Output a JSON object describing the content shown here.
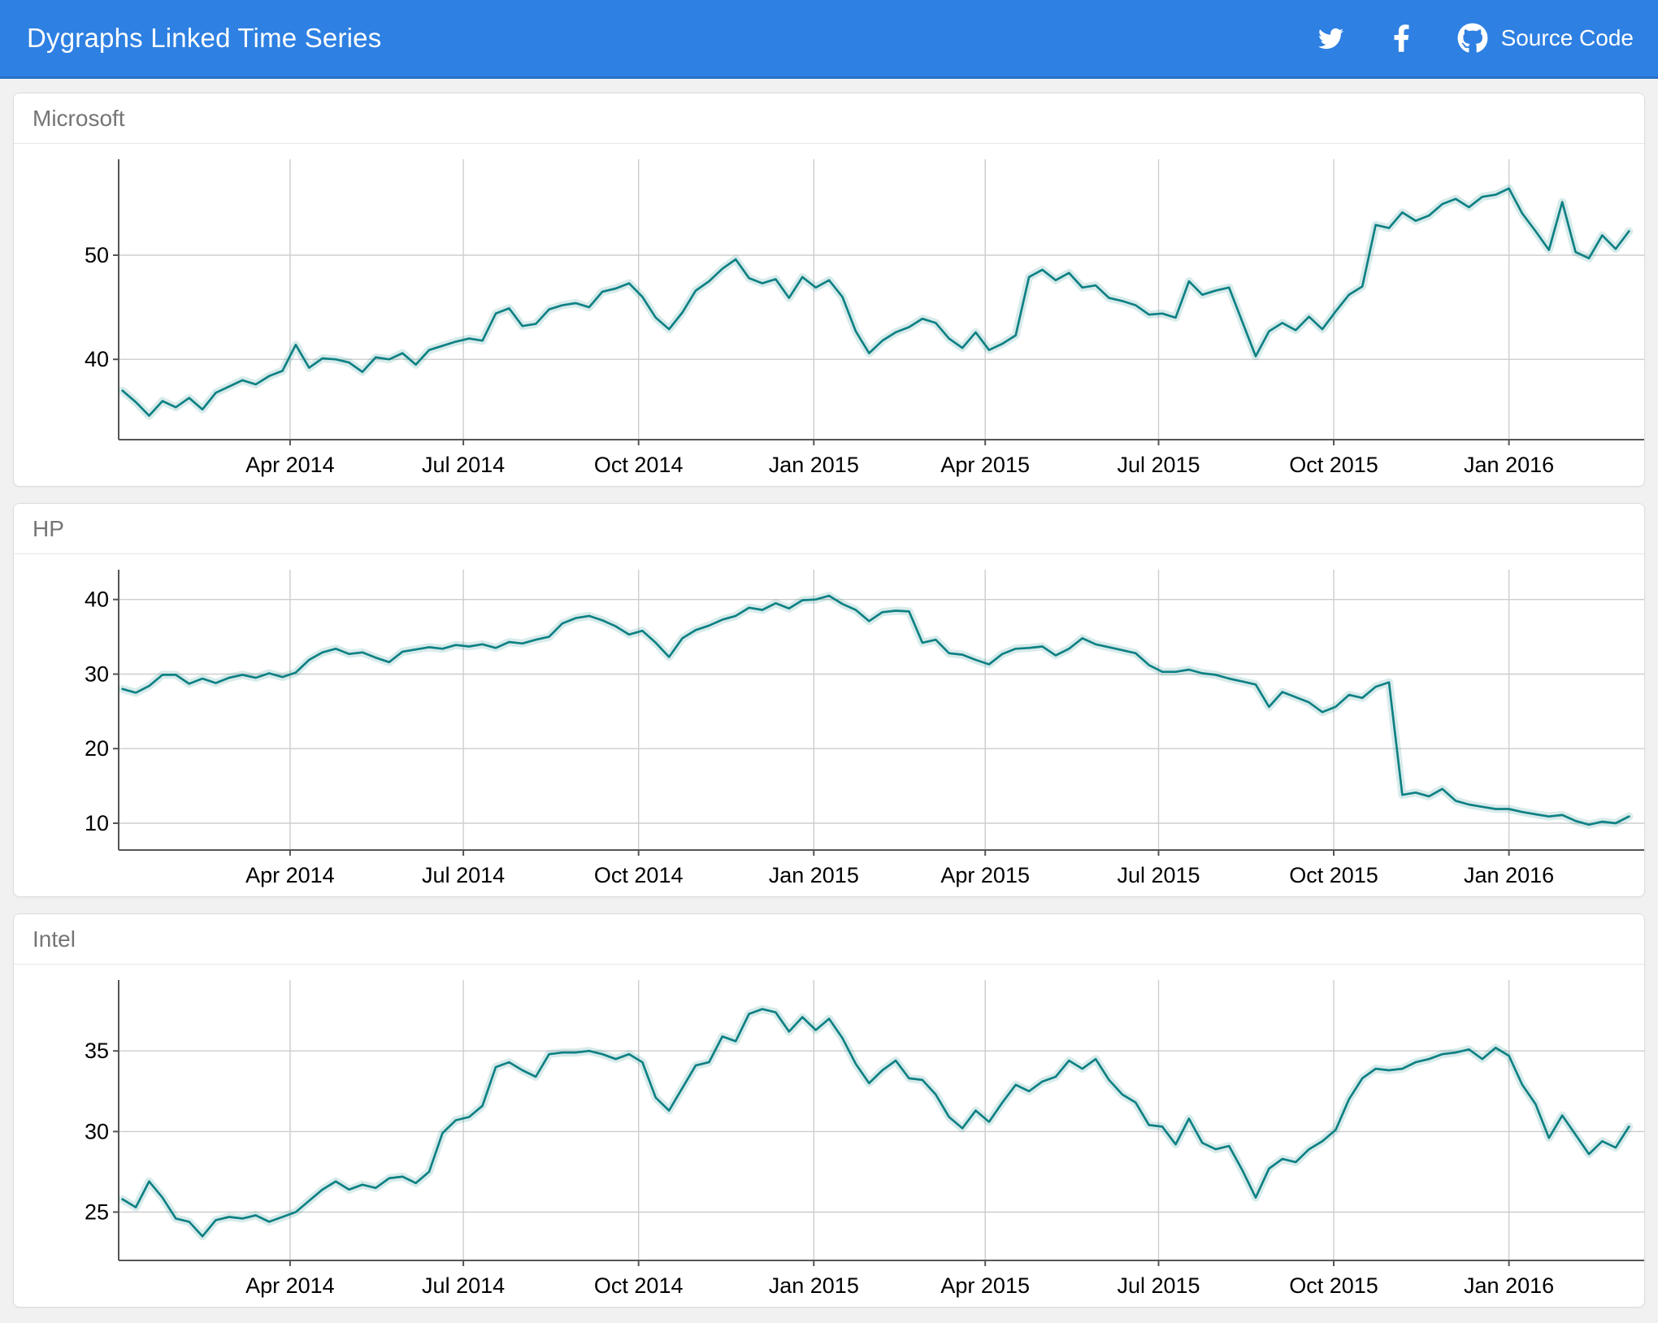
{
  "navbar": {
    "title": "Dygraphs Linked Time Series",
    "links": [
      {
        "name": "twitter",
        "label": ""
      },
      {
        "name": "facebook",
        "label": ""
      },
      {
        "name": "github",
        "label": "Source Code"
      }
    ],
    "source_code_label": "Source Code"
  },
  "colors": {
    "navbar_bg": "#2e80e2",
    "series_line": "#0e8184",
    "series_band": "rgba(14,129,132,0.16)",
    "gridline": "#cdcdcd",
    "axis_line": "#555555",
    "tick_label": "#000000",
    "panel_title": "#757575",
    "page_bg": "#f1f1f2"
  },
  "chart_data": [
    {
      "type": "line",
      "title": "Microsoft",
      "legend_position": "none",
      "grid": true,
      "x_domain_days": [
        0,
        801
      ],
      "x_epoch": "2014-01-01",
      "data_start_day": 2,
      "data_step_days": 7,
      "y_min": 32.3,
      "y_max": 59.2,
      "y_ticks": [
        40,
        50
      ],
      "x_ticks": [
        {
          "label": "Apr 2014",
          "day": 90
        },
        {
          "label": "Jul 2014",
          "day": 181
        },
        {
          "label": "Oct 2014",
          "day": 273
        },
        {
          "label": "Jan 2015",
          "day": 365
        },
        {
          "label": "Apr 2015",
          "day": 455
        },
        {
          "label": "Jul 2015",
          "day": 546
        },
        {
          "label": "Oct 2015",
          "day": 638
        },
        {
          "label": "Jan 2016",
          "day": 730
        }
      ],
      "values": [
        37.0,
        35.9,
        34.6,
        36.0,
        35.4,
        36.3,
        35.2,
        36.8,
        37.4,
        38.0,
        37.6,
        38.4,
        38.9,
        41.4,
        39.2,
        40.1,
        40.0,
        39.7,
        38.8,
        40.2,
        40.0,
        40.6,
        39.5,
        40.9,
        41.3,
        41.7,
        42.0,
        41.8,
        44.4,
        44.9,
        43.2,
        43.4,
        44.8,
        45.2,
        45.4,
        45.0,
        46.5,
        46.8,
        47.3,
        46.0,
        44.0,
        42.9,
        44.5,
        46.6,
        47.5,
        48.7,
        49.6,
        47.8,
        47.3,
        47.7,
        45.9,
        47.9,
        46.9,
        47.6,
        46.0,
        42.7,
        40.6,
        41.8,
        42.6,
        43.1,
        43.9,
        43.5,
        42.0,
        41.1,
        42.6,
        40.9,
        41.5,
        42.3,
        47.9,
        48.6,
        47.6,
        48.3,
        46.9,
        47.1,
        45.9,
        45.6,
        45.2,
        44.3,
        44.4,
        44.0,
        47.5,
        46.2,
        46.6,
        46.9,
        43.6,
        40.3,
        42.7,
        43.5,
        42.8,
        44.1,
        42.9,
        44.6,
        46.2,
        47.0,
        52.9,
        52.6,
        54.1,
        53.3,
        53.8,
        54.9,
        55.4,
        54.6,
        55.6,
        55.8,
        56.4,
        54.0,
        52.3,
        50.5,
        55.1,
        50.3,
        49.7,
        51.9,
        50.6,
        52.3
      ]
    },
    {
      "type": "line",
      "title": "HP",
      "legend_position": "none",
      "grid": true,
      "x_domain_days": [
        0,
        801
      ],
      "x_epoch": "2014-01-01",
      "data_start_day": 2,
      "data_step_days": 7,
      "y_min": 6.4,
      "y_max": 44.0,
      "y_ticks": [
        10,
        20,
        30,
        40
      ],
      "x_ticks": [
        {
          "label": "Apr 2014",
          "day": 90
        },
        {
          "label": "Jul 2014",
          "day": 181
        },
        {
          "label": "Oct 2014",
          "day": 273
        },
        {
          "label": "Jan 2015",
          "day": 365
        },
        {
          "label": "Apr 2015",
          "day": 455
        },
        {
          "label": "Jul 2015",
          "day": 546
        },
        {
          "label": "Oct 2015",
          "day": 638
        },
        {
          "label": "Jan 2016",
          "day": 730
        }
      ],
      "values": [
        28.0,
        27.5,
        28.4,
        29.9,
        29.9,
        28.7,
        29.4,
        28.8,
        29.5,
        29.9,
        29.5,
        30.1,
        29.6,
        30.2,
        31.9,
        32.9,
        33.4,
        32.7,
        32.9,
        32.2,
        31.6,
        33.0,
        33.3,
        33.6,
        33.4,
        33.9,
        33.7,
        34.0,
        33.5,
        34.3,
        34.1,
        34.6,
        35.0,
        36.8,
        37.5,
        37.8,
        37.2,
        36.4,
        35.3,
        35.8,
        34.2,
        32.3,
        34.8,
        35.9,
        36.5,
        37.3,
        37.8,
        38.9,
        38.6,
        39.5,
        38.8,
        39.9,
        40.0,
        40.5,
        39.4,
        38.6,
        37.1,
        38.3,
        38.5,
        38.4,
        34.2,
        34.6,
        32.8,
        32.6,
        31.9,
        31.3,
        32.7,
        33.4,
        33.5,
        33.7,
        32.5,
        33.4,
        34.8,
        34.0,
        33.6,
        33.2,
        32.8,
        31.2,
        30.3,
        30.3,
        30.6,
        30.1,
        29.9,
        29.4,
        29.0,
        28.6,
        25.6,
        27.6,
        26.9,
        26.2,
        24.9,
        25.6,
        27.2,
        26.8,
        28.3,
        28.9,
        13.8,
        14.1,
        13.6,
        14.6,
        13.0,
        12.5,
        12.2,
        11.9,
        11.9,
        11.5,
        11.2,
        10.9,
        11.1,
        10.3,
        9.8,
        10.2,
        10.0,
        10.9
      ]
    },
    {
      "type": "line",
      "title": "Intel",
      "legend_position": "none",
      "grid": true,
      "x_domain_days": [
        0,
        801
      ],
      "x_epoch": "2014-01-01",
      "data_start_day": 2,
      "data_step_days": 7,
      "y_min": 22.0,
      "y_max": 39.4,
      "y_ticks": [
        25,
        30,
        35
      ],
      "x_ticks": [
        {
          "label": "Apr 2014",
          "day": 90
        },
        {
          "label": "Jul 2014",
          "day": 181
        },
        {
          "label": "Oct 2014",
          "day": 273
        },
        {
          "label": "Jan 2015",
          "day": 365
        },
        {
          "label": "Apr 2015",
          "day": 455
        },
        {
          "label": "Jul 2015",
          "day": 546
        },
        {
          "label": "Oct 2015",
          "day": 638
        },
        {
          "label": "Jan 2016",
          "day": 730
        }
      ],
      "values": [
        25.8,
        25.3,
        26.9,
        25.9,
        24.6,
        24.4,
        23.5,
        24.5,
        24.7,
        24.6,
        24.8,
        24.4,
        24.7,
        25.0,
        25.7,
        26.4,
        26.9,
        26.4,
        26.7,
        26.5,
        27.1,
        27.2,
        26.8,
        27.5,
        29.9,
        30.7,
        30.9,
        31.6,
        34.0,
        34.3,
        33.8,
        33.4,
        34.8,
        34.9,
        34.9,
        35.0,
        34.8,
        34.5,
        34.8,
        34.3,
        32.1,
        31.3,
        32.7,
        34.1,
        34.3,
        35.9,
        35.6,
        37.3,
        37.6,
        37.4,
        36.2,
        37.1,
        36.3,
        37.0,
        35.8,
        34.2,
        33.0,
        33.8,
        34.4,
        33.3,
        33.2,
        32.3,
        30.9,
        30.2,
        31.3,
        30.6,
        31.8,
        32.9,
        32.5,
        33.1,
        33.4,
        34.4,
        33.9,
        34.5,
        33.2,
        32.3,
        31.8,
        30.4,
        30.3,
        29.2,
        30.8,
        29.3,
        28.9,
        29.1,
        27.6,
        25.9,
        27.7,
        28.3,
        28.1,
        28.9,
        29.4,
        30.1,
        32.0,
        33.3,
        33.9,
        33.8,
        33.9,
        34.3,
        34.5,
        34.8,
        34.9,
        35.1,
        34.5,
        35.2,
        34.7,
        32.9,
        31.7,
        29.6,
        31.0,
        29.8,
        28.6,
        29.4,
        29.0,
        30.3
      ]
    }
  ]
}
